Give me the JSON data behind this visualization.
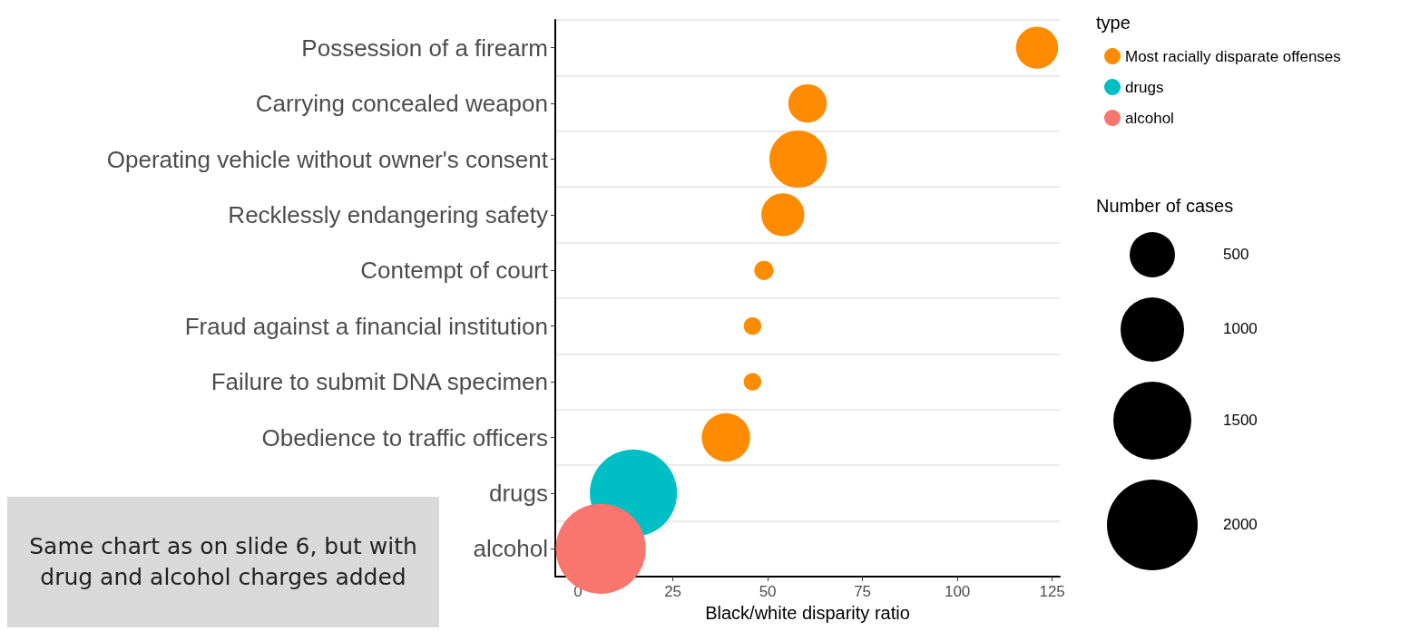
{
  "chart_data": {
    "type": "bubble",
    "categories": [
      "Possession of a firearm",
      "Carrying concealed weapon",
      "Operating vehicle without owner's consent",
      "Recklessly endangering safety",
      "Contempt of court",
      "Fraud against a financial institution",
      "Failure to submit DNA specimen",
      "Obedience to traffic officers",
      "drugs",
      "alcohol"
    ],
    "series": [
      {
        "name": "Most racially disparate offenses",
        "color": "#ff8c00",
        "values": [
          121,
          60.5,
          58,
          54,
          49,
          46,
          46,
          39,
          null,
          null
        ],
        "sizes": [
          430,
          360,
          800,
          450,
          90,
          75,
          75,
          570,
          null,
          null
        ]
      },
      {
        "name": "drugs",
        "color": "#00bfc4",
        "values": [
          null,
          null,
          null,
          null,
          null,
          null,
          null,
          null,
          14.6,
          null
        ],
        "sizes": [
          null,
          null,
          null,
          null,
          null,
          null,
          null,
          null,
          1850,
          null
        ]
      },
      {
        "name": "alcohol",
        "color": "#f8766d",
        "values": [
          null,
          null,
          null,
          null,
          null,
          null,
          null,
          null,
          null,
          6
        ],
        "sizes": [
          null,
          null,
          null,
          null,
          null,
          null,
          null,
          null,
          null,
          1970
        ]
      }
    ],
    "orientation": "horizontal",
    "xlabel": "Black/white disparity ratio",
    "xlim": [
      -6,
      127
    ],
    "xticks": [
      0,
      25,
      50,
      75,
      100,
      125
    ],
    "size_legend": [
      500,
      1000,
      1500,
      2000
    ],
    "legend_title": "type",
    "legend": "top right",
    "grid": "y",
    "annotations": [
      "Same chart as on slide 6, but with drug and alcohol charges added",
      "Number of cases"
    ]
  }
}
